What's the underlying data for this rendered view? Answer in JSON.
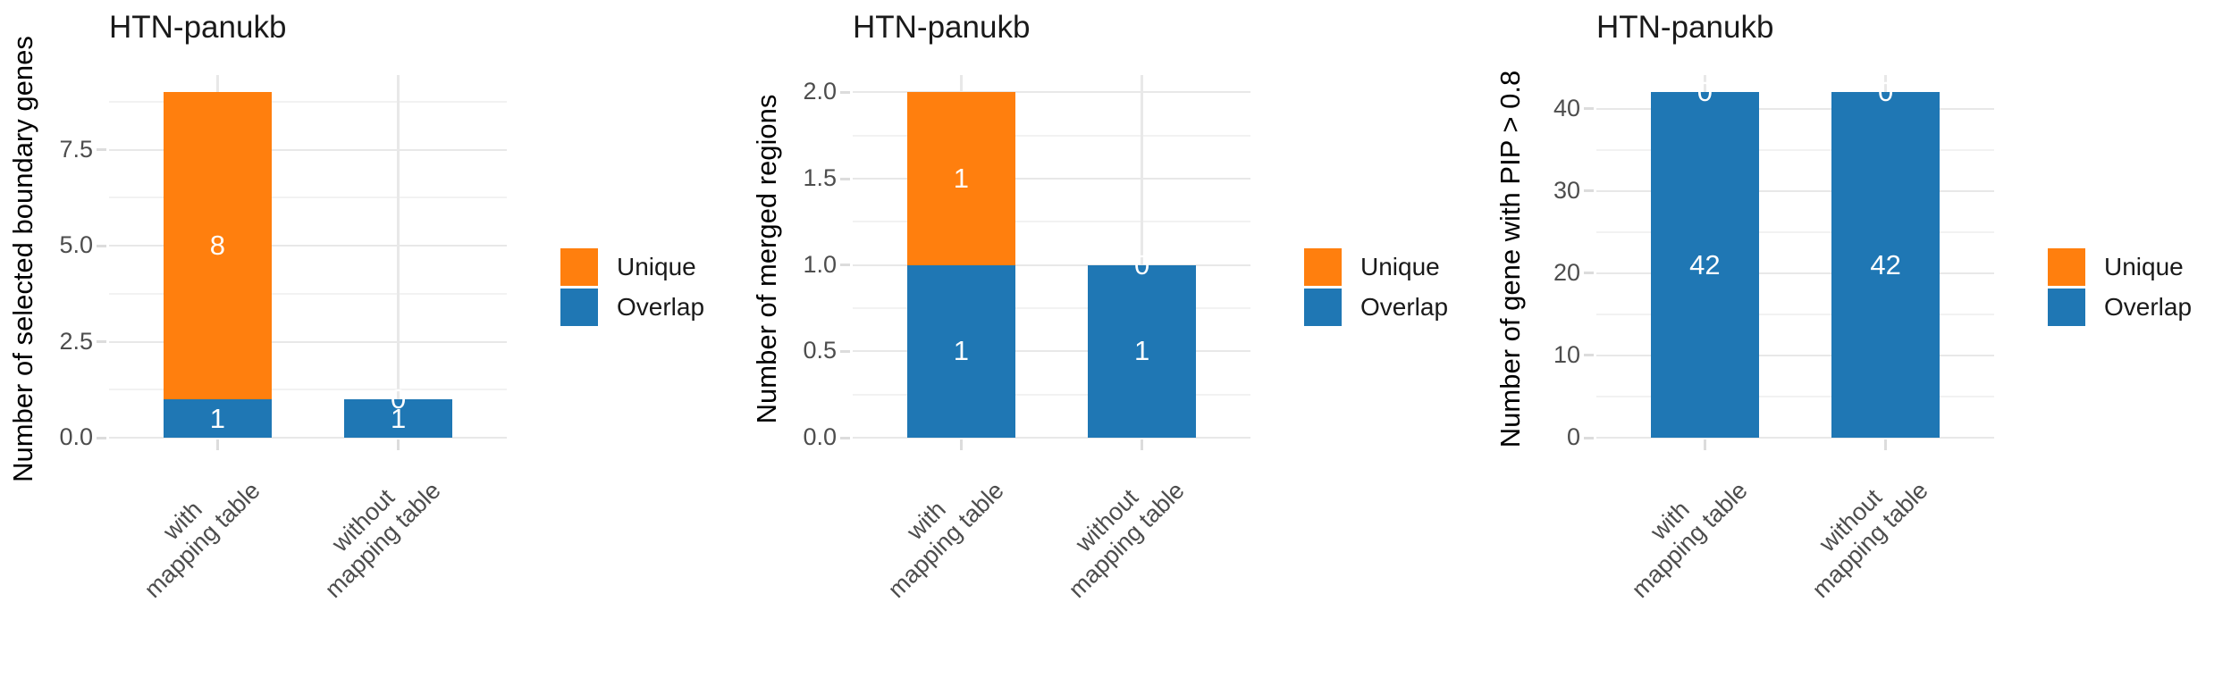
{
  "colors": {
    "unique": "#FF7F0E",
    "overlap": "#1F77B4",
    "grid_major": "#E8E8E8",
    "grid_minor": "#F2F2F2",
    "tick_mark": "#DCDCDC",
    "tick_text": "#4D4D4D",
    "bar_label_text": "#FFFFFF",
    "background": "#FFFFFF"
  },
  "legend": {
    "position": "right",
    "items": [
      {
        "label": "Unique",
        "key": "unique"
      },
      {
        "label": "Overlap",
        "key": "overlap"
      }
    ]
  },
  "chart_data": [
    {
      "type": "bar",
      "stacked": true,
      "title": "HTN-panukb",
      "ylabel": "Number of selected boundary genes",
      "xlabel": "",
      "categories": [
        "with mapping table",
        "without mapping table"
      ],
      "category_label_lines": [
        [
          "with",
          "mapping table"
        ],
        [
          "without",
          "mapping table"
        ]
      ],
      "series": [
        {
          "name": "Overlap",
          "color_key": "overlap",
          "values": [
            1,
            1
          ],
          "value_labels": [
            "1",
            "1"
          ]
        },
        {
          "name": "Unique",
          "color_key": "unique",
          "values": [
            8,
            0
          ],
          "value_labels": [
            "8",
            "0"
          ]
        }
      ],
      "yticks": [
        0,
        2.5,
        5,
        7.5
      ],
      "ytick_labels": [
        "0.0",
        "2.5",
        "5.0",
        "7.5"
      ],
      "ylim": [
        0,
        9.45
      ],
      "grid": "major+minor",
      "legend_position": "right"
    },
    {
      "type": "bar",
      "stacked": true,
      "title": "HTN-panukb",
      "ylabel": "Number of merged regions",
      "xlabel": "",
      "categories": [
        "with mapping table",
        "without mapping table"
      ],
      "category_label_lines": [
        [
          "with",
          "mapping table"
        ],
        [
          "without",
          "mapping table"
        ]
      ],
      "series": [
        {
          "name": "Overlap",
          "color_key": "overlap",
          "values": [
            1,
            1
          ],
          "value_labels": [
            "1",
            "1"
          ]
        },
        {
          "name": "Unique",
          "color_key": "unique",
          "values": [
            1,
            0
          ],
          "value_labels": [
            "1",
            "0"
          ]
        }
      ],
      "yticks": [
        0,
        0.5,
        1,
        1.5,
        2
      ],
      "ytick_labels": [
        "0.0",
        "0.5",
        "1.0",
        "1.5",
        "2.0"
      ],
      "ylim": [
        0,
        2.1
      ],
      "grid": "major+minor",
      "legend_position": "right"
    },
    {
      "type": "bar",
      "stacked": true,
      "title": "HTN-panukb",
      "ylabel": "Number of gene with PIP > 0.8",
      "xlabel": "",
      "categories": [
        "with mapping table",
        "without mapping table"
      ],
      "category_label_lines": [
        [
          "with",
          "mapping table"
        ],
        [
          "without",
          "mapping table"
        ]
      ],
      "series": [
        {
          "name": "Overlap",
          "color_key": "overlap",
          "values": [
            42,
            42
          ],
          "value_labels": [
            "42",
            "42"
          ]
        },
        {
          "name": "Unique",
          "color_key": "unique",
          "values": [
            0,
            0
          ],
          "value_labels": [
            "0",
            "0"
          ]
        }
      ],
      "yticks": [
        0,
        10,
        20,
        30,
        40
      ],
      "ytick_labels": [
        "0",
        "10",
        "20",
        "30",
        "40"
      ],
      "ylim": [
        0,
        44.1
      ],
      "grid": "major+minor",
      "legend_position": "right"
    }
  ]
}
